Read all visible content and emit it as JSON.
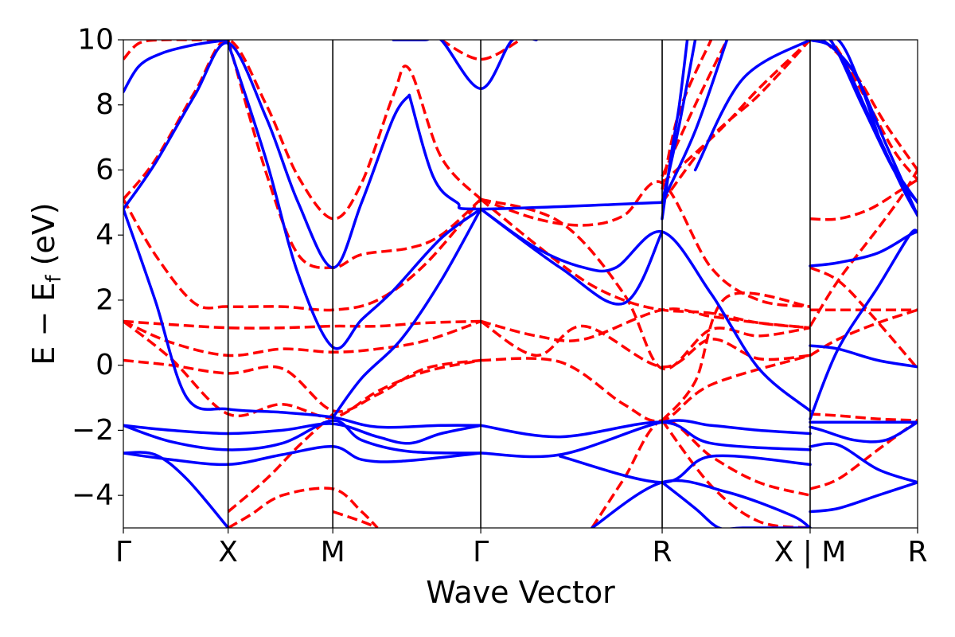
{
  "chart_data": {
    "type": "line",
    "title": "",
    "xlabel": "Wave Vector",
    "ylabel": {
      "prefix": "E − E",
      "subscript": "f",
      "suffix": " (eV)"
    },
    "ylim": [
      -5,
      10
    ],
    "yticks": [
      -4,
      -2,
      0,
      2,
      4,
      6,
      8,
      10
    ],
    "ytick_labels": [
      "−4",
      "−2",
      "0",
      "2",
      "4",
      "6",
      "8",
      "10"
    ],
    "xlim": [
      0,
      1
    ],
    "kpoints": [
      {
        "label": "Γ",
        "x": 0.0
      },
      {
        "label": "X",
        "x": 0.1319
      },
      {
        "label": "M",
        "x": 0.2637
      },
      {
        "label": "Γ",
        "x": 0.45
      },
      {
        "label": "R",
        "x": 0.6784
      },
      {
        "label": "X | M",
        "x": 0.8647
      },
      {
        "label": "R",
        "x": 1.0
      }
    ],
    "grid": false,
    "legend": "none",
    "colors": {
      "solid": "#0000ff",
      "dashed": "#ff0000"
    },
    "series": [
      {
        "style": "solid",
        "x": [
          0,
          0.02,
          0.05,
          0.09,
          0.132
        ],
        "y": [
          8.4,
          9.2,
          9.6,
          9.85,
          10
        ]
      },
      {
        "style": "solid",
        "x": [
          0,
          0.04,
          0.09,
          0.132,
          0.18,
          0.22,
          0.264,
          0.3,
          0.34,
          0.36
        ],
        "y": [
          4.8,
          6.2,
          8.3,
          9.9,
          7.6,
          5.0,
          3.0,
          5.0,
          7.6,
          8.3
        ]
      },
      {
        "style": "solid",
        "x": [
          0.36,
          0.39,
          0.42,
          0.45,
          0.6784
        ],
        "y": [
          8.3,
          5.8,
          5.0,
          4.8,
          5.0
        ]
      },
      {
        "style": "solid",
        "x": [
          0.132,
          0.18,
          0.22,
          0.264,
          0.3,
          0.34,
          0.4,
          0.45
        ],
        "y": [
          9.9,
          6.3,
          2.8,
          0.55,
          1.4,
          2.3,
          3.9,
          4.8
        ]
      },
      {
        "style": "solid",
        "x": [
          0.45,
          0.52,
          0.58,
          0.62,
          0.6784,
          0.74,
          0.8,
          0.8647
        ],
        "y": [
          4.8,
          3.6,
          3.0,
          3.0,
          4.1,
          2.2,
          -0.1,
          -1.4
        ]
      },
      {
        "style": "solid",
        "x": [
          0.45,
          0.55,
          0.63,
          0.6784
        ],
        "y": [
          4.8,
          3.0,
          1.9,
          4.1
        ]
      },
      {
        "style": "solid",
        "x": [
          0,
          0.04,
          0.08,
          0.132,
          0.2,
          0.264,
          0.32,
          0.4,
          0.45
        ],
        "y": [
          4.8,
          2.0,
          -1.0,
          -1.35,
          -1.45,
          -1.6,
          -1.9,
          -1.85,
          -1.85
        ]
      },
      {
        "style": "solid",
        "x": [
          0.264,
          0.3,
          0.35,
          0.4,
          0.45
        ],
        "y": [
          -1.6,
          -0.4,
          0.8,
          2.6,
          4.8
        ]
      },
      {
        "style": "solid",
        "x": [
          0,
          0.06,
          0.132,
          0.2,
          0.264,
          0.32,
          0.36,
          0.4,
          0.45
        ],
        "y": [
          -1.85,
          -2.0,
          -2.1,
          -2.0,
          -1.8,
          -2.2,
          -2.4,
          -2.1,
          -1.85
        ]
      },
      {
        "style": "solid",
        "x": [
          0,
          0.06,
          0.132,
          0.2,
          0.264,
          0.3,
          0.36,
          0.45
        ],
        "y": [
          -1.85,
          -2.35,
          -2.6,
          -2.4,
          -1.7,
          -2.3,
          -2.65,
          -2.7
        ]
      },
      {
        "style": "solid",
        "x": [
          0,
          0.06,
          0.132,
          0.2,
          0.264,
          0.3,
          0.35,
          0.45
        ],
        "y": [
          -2.7,
          -2.9,
          -3.05,
          -2.75,
          -2.5,
          -2.9,
          -2.95,
          -2.7
        ]
      },
      {
        "style": "solid",
        "x": [
          0,
          0.04,
          0.08,
          0.132
        ],
        "y": [
          -2.7,
          -2.75,
          -3.5,
          -5.0
        ]
      },
      {
        "style": "solid",
        "x": [
          0.45,
          0.55,
          0.6784,
          0.74,
          0.8,
          0.8647
        ],
        "y": [
          -2.7,
          -2.75,
          -1.75,
          -1.85,
          -2.0,
          -2.1
        ]
      },
      {
        "style": "solid",
        "x": [
          0.45,
          0.55,
          0.6784,
          0.74,
          0.8647
        ],
        "y": [
          -1.85,
          -2.2,
          -1.75,
          -2.4,
          -2.6
        ]
      },
      {
        "style": "solid",
        "x": [
          0.55,
          0.6784,
          0.74,
          0.8647
        ],
        "y": [
          -2.8,
          -3.6,
          -2.8,
          -3.05
        ]
      },
      {
        "style": "solid",
        "x": [
          0.59,
          0.6784,
          0.76,
          0.84,
          0.8647
        ],
        "y": [
          -5.0,
          -3.6,
          -3.9,
          -4.6,
          -5.0
        ]
      },
      {
        "style": "solid",
        "x": [
          0.6784,
          0.72,
          0.75,
          0.78,
          0.8647
        ],
        "y": [
          -3.6,
          -4.4,
          -5.0,
          -5.0,
          -5.0
        ]
      },
      {
        "style": "solid",
        "x": [
          0.8647,
          0.9,
          0.95,
          0.99,
          1.0
        ],
        "y": [
          3.05,
          3.15,
          3.45,
          4.0,
          4.1
        ]
      },
      {
        "style": "solid",
        "x": [
          0.8647,
          0.9,
          0.95,
          1.0
        ],
        "y": [
          0.6,
          0.5,
          0.15,
          -0.05
        ]
      },
      {
        "style": "solid",
        "x": [
          0.8647,
          0.9,
          0.95,
          1.0
        ],
        "y": [
          -1.75,
          -1.75,
          -1.75,
          -1.75
        ]
      },
      {
        "style": "solid",
        "x": [
          0.8647,
          0.9,
          0.95,
          1.0
        ],
        "y": [
          -2.5,
          -2.45,
          -3.2,
          -3.6
        ]
      },
      {
        "style": "solid",
        "x": [
          0.8647,
          0.9,
          0.95,
          1.0
        ],
        "y": [
          -4.5,
          -4.4,
          -4.0,
          -3.6
        ]
      },
      {
        "style": "solid",
        "x": [
          0.8647,
          0.9,
          0.95,
          0.99,
          1.0
        ],
        "y": [
          -1.65,
          0.5,
          2.4,
          4.0,
          4.1
        ]
      },
      {
        "style": "solid",
        "x": [
          0.8647,
          0.88,
          0.92,
          0.96,
          1.0
        ],
        "y": [
          -1.9,
          -2.0,
          -2.3,
          -2.3,
          -1.75
        ]
      },
      {
        "style": "solid",
        "x": [
          0.72,
          0.78,
          0.8647
        ],
        "y": [
          6.0,
          8.8,
          10.0
        ]
      },
      {
        "style": "solid",
        "x": [
          0.6784,
          0.72,
          0.76
        ],
        "y": [
          5.0,
          7.2,
          10.0
        ]
      },
      {
        "style": "solid",
        "x": [
          0.6784,
          0.7,
          0.72
        ],
        "y": [
          5.0,
          7.4,
          10.0
        ]
      },
      {
        "style": "solid",
        "x": [
          0.6784,
          0.69,
          0.7,
          0.71
        ],
        "y": [
          4.5,
          6.5,
          8.0,
          10.0
        ]
      },
      {
        "style": "solid",
        "x": [
          0.8647,
          0.9,
          0.93,
          0.96,
          1.0
        ],
        "y": [
          10.0,
          10.0,
          8.5,
          6.5,
          5.0
        ]
      },
      {
        "style": "solid",
        "x": [
          0.8647,
          0.89,
          0.93,
          0.97,
          1.0
        ],
        "y": [
          10.0,
          10.0,
          8.0,
          6.0,
          5.0
        ]
      },
      {
        "style": "solid",
        "x": [
          0.8647,
          0.9,
          0.94,
          0.98,
          1.0
        ],
        "y": [
          10.0,
          9.6,
          7.6,
          5.5,
          4.6
        ]
      },
      {
        "style": "solid",
        "x": [
          0.8647,
          0.88,
          0.92,
          0.96,
          1.0
        ],
        "y": [
          10.0,
          10.0,
          9.0,
          6.8,
          4.6
        ]
      },
      {
        "style": "solid",
        "x": [
          0.34,
          0.38,
          0.4,
          0.45,
          0.49,
          0.52
        ],
        "y": [
          10.0,
          10.0,
          10.0,
          8.5,
          10.0,
          10.0
        ]
      },
      {
        "style": "dashed",
        "x": [
          0,
          0.02,
          0.05,
          0.09,
          0.132
        ],
        "y": [
          9.4,
          9.9,
          10.0,
          10.0,
          10.0
        ]
      },
      {
        "style": "dashed",
        "x": [
          0,
          0.04,
          0.09,
          0.132,
          0.18,
          0.22,
          0.264,
          0.3,
          0.34,
          0.36,
          0.4,
          0.45
        ],
        "y": [
          5.1,
          6.3,
          8.4,
          10.0,
          8.0,
          5.8,
          4.5,
          5.6,
          8.3,
          9.1,
          6.4,
          5.1
        ]
      },
      {
        "style": "dashed",
        "x": [
          0.132,
          0.18,
          0.22,
          0.264,
          0.3,
          0.36,
          0.4,
          0.45
        ],
        "y": [
          10.0,
          5.9,
          3.4,
          3.0,
          3.4,
          3.6,
          4.0,
          5.1
        ]
      },
      {
        "style": "dashed",
        "x": [
          0,
          0.04,
          0.09,
          0.132,
          0.2,
          0.264,
          0.32,
          0.38,
          0.45
        ],
        "y": [
          5.1,
          3.4,
          1.9,
          1.8,
          1.8,
          1.7,
          2.0,
          3.1,
          5.1
        ]
      },
      {
        "style": "dashed",
        "x": [
          0.45,
          0.52,
          0.58,
          0.63,
          0.6784,
          0.74,
          0.8,
          0.8647
        ],
        "y": [
          5.1,
          4.5,
          4.3,
          4.6,
          5.6,
          3.0,
          2.0,
          1.8
        ]
      },
      {
        "style": "dashed",
        "x": [
          0.45,
          0.52,
          0.58,
          0.63,
          0.6784,
          0.74,
          0.8,
          0.8647
        ],
        "y": [
          5.1,
          3.7,
          2.6,
          2.0,
          1.7,
          1.6,
          1.3,
          1.15
        ]
      },
      {
        "style": "dashed",
        "x": [
          0,
          0.06,
          0.132,
          0.2,
          0.264,
          0.32,
          0.38,
          0.45
        ],
        "y": [
          1.35,
          1.25,
          1.15,
          1.15,
          1.2,
          1.2,
          1.3,
          1.35
        ]
      },
      {
        "style": "dashed",
        "x": [
          0.45,
          0.52,
          0.58,
          0.6784,
          0.74,
          0.8,
          0.8647
        ],
        "y": [
          1.35,
          0.9,
          0.8,
          1.7,
          1.5,
          1.3,
          1.15
        ]
      },
      {
        "style": "dashed",
        "x": [
          0,
          0.06,
          0.132,
          0.2,
          0.264,
          0.32,
          0.38,
          0.45
        ],
        "y": [
          1.35,
          0.7,
          0.3,
          0.5,
          0.4,
          0.5,
          0.75,
          1.35
        ]
      },
      {
        "style": "dashed",
        "x": [
          0.45,
          0.52,
          0.58,
          0.6784,
          0.74,
          0.8,
          0.8647
        ],
        "y": [
          1.35,
          0.3,
          1.2,
          -0.05,
          0.8,
          0.2,
          0.3
        ]
      },
      {
        "style": "dashed",
        "x": [
          0,
          0.06,
          0.132,
          0.2,
          0.264,
          0.32,
          0.38,
          0.45
        ],
        "y": [
          0.15,
          0.0,
          -0.25,
          -0.1,
          -1.4,
          -0.9,
          -0.1,
          0.15
        ]
      },
      {
        "style": "dashed",
        "x": [
          0.45,
          0.55,
          0.63,
          0.6784,
          0.74,
          0.8647
        ],
        "y": [
          0.15,
          0.1,
          -1.2,
          -1.7,
          -0.6,
          0.3
        ]
      },
      {
        "style": "dashed",
        "x": [
          0,
          0.06,
          0.132,
          0.2,
          0.264,
          0.32,
          0.38,
          0.45
        ],
        "y": [
          1.35,
          0.2,
          -1.5,
          -1.2,
          -1.6,
          -0.8,
          -0.2,
          0.15
        ]
      },
      {
        "style": "dashed",
        "x": [
          0.6784,
          0.72,
          0.76,
          0.8647
        ],
        "y": [
          -1.7,
          -0.5,
          2.1,
          1.8
        ]
      },
      {
        "style": "dashed",
        "x": [
          0.45,
          0.55,
          0.63,
          0.6784,
          0.74,
          0.8,
          0.8647
        ],
        "y": [
          5.1,
          4.4,
          2.2,
          -0.1,
          1.1,
          0.9,
          1.15
        ]
      },
      {
        "style": "dashed",
        "x": [
          0.132,
          0.18,
          0.22,
          0.264
        ],
        "y": [
          -4.5,
          -3.5,
          -2.5,
          -1.5
        ]
      },
      {
        "style": "dashed",
        "x": [
          0.132,
          0.16,
          0.2,
          0.264,
          0.3,
          0.32
        ],
        "y": [
          -5.0,
          -4.6,
          -4.0,
          -3.8,
          -4.5,
          -5.0
        ]
      },
      {
        "style": "dashed",
        "x": [
          0.264,
          0.3,
          0.32
        ],
        "y": [
          -4.5,
          -4.8,
          -5.0
        ]
      },
      {
        "style": "dashed",
        "x": [
          0.59,
          0.63,
          0.6784,
          0.74,
          0.8,
          0.8647
        ],
        "y": [
          -5.0,
          -3.5,
          -1.7,
          -2.8,
          -3.6,
          -4.0
        ]
      },
      {
        "style": "dashed",
        "x": [
          0.6784,
          0.74,
          0.8,
          0.8647
        ],
        "y": [
          -1.7,
          -3.7,
          -4.8,
          -5.0
        ]
      },
      {
        "style": "dashed",
        "x": [
          0.6784,
          0.72,
          0.76
        ],
        "y": [
          5.8,
          8.0,
          10.0
        ]
      },
      {
        "style": "dashed",
        "x": [
          0.6784,
          0.7,
          0.74
        ],
        "y": [
          5.4,
          7.8,
          10.0
        ]
      },
      {
        "style": "dashed",
        "x": [
          0.6784,
          0.75,
          0.8,
          0.8647
        ],
        "y": [
          5.6,
          7.2,
          8.5,
          10.0
        ]
      },
      {
        "style": "dashed",
        "x": [
          0.6784,
          0.74,
          0.8,
          0.8647
        ],
        "y": [
          5.0,
          7.0,
          8.3,
          10.0
        ]
      },
      {
        "style": "dashed",
        "x": [
          0.8647,
          0.9,
          0.94,
          0.98,
          1.0
        ],
        "y": [
          4.5,
          4.5,
          4.8,
          5.4,
          5.7
        ]
      },
      {
        "style": "dashed",
        "x": [
          0.8647,
          0.9,
          0.95,
          1.0
        ],
        "y": [
          1.7,
          1.7,
          1.7,
          1.7
        ]
      },
      {
        "style": "dashed",
        "x": [
          0.8647,
          0.9,
          0.95,
          1.0
        ],
        "y": [
          0.3,
          0.8,
          1.3,
          1.7
        ]
      },
      {
        "style": "dashed",
        "x": [
          0.8647,
          0.9,
          0.94,
          1.0
        ],
        "y": [
          3.0,
          2.6,
          1.6,
          -0.1
        ]
      },
      {
        "style": "dashed",
        "x": [
          0.8647,
          0.9,
          0.95,
          1.0
        ],
        "y": [
          -1.5,
          -1.55,
          -1.65,
          -1.7
        ]
      },
      {
        "style": "dashed",
        "x": [
          0.8647,
          0.9,
          0.95,
          1.0
        ],
        "y": [
          -3.8,
          -3.5,
          -2.6,
          -1.7
        ]
      },
      {
        "style": "dashed",
        "x": [
          0.8647,
          0.9,
          0.95,
          0.98,
          1.0
        ],
        "y": [
          1.2,
          2.6,
          4.2,
          5.2,
          6.0
        ]
      },
      {
        "style": "dashed",
        "x": [
          0.8647,
          0.88,
          0.92,
          0.96,
          1.0
        ],
        "y": [
          10.0,
          10.0,
          9.0,
          7.4,
          6.0
        ]
      },
      {
        "style": "dashed",
        "x": [
          0.8647,
          0.89,
          0.93,
          0.97,
          1.0
        ],
        "y": [
          10.0,
          10.0,
          8.4,
          6.6,
          5.7
        ]
      },
      {
        "style": "dashed",
        "x": [
          0.4,
          0.45,
          0.5
        ],
        "y": [
          10.0,
          9.4,
          10.0
        ]
      }
    ]
  }
}
